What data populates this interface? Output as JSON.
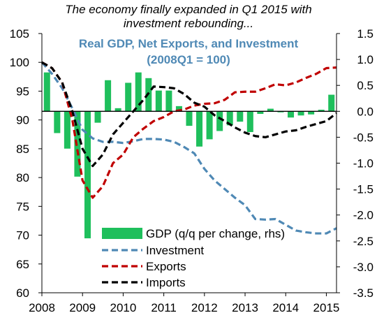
{
  "page": {
    "title_line1": "The economy finally expanded in Q1 2015 with",
    "title_line2": "investment rebounding..."
  },
  "chart_data": {
    "type": "line",
    "title": "Real  GDP, Net Exports, and Investment",
    "subtitle": "(2008Q1 = 100)",
    "title_color": "#4f89b5",
    "xlabel": "",
    "ylabel": "",
    "x_ticks": [
      "2008",
      "2009",
      "2010",
      "2011",
      "2012",
      "2013",
      "2014",
      "2015"
    ],
    "x_range": [
      2008.0,
      2015.25
    ],
    "y_left": {
      "ticks": [
        "60",
        "65",
        "70",
        "75",
        "80",
        "85",
        "90",
        "95",
        "100",
        "105"
      ],
      "range": [
        60,
        105
      ]
    },
    "y_right": {
      "ticks": [
        "-3.5",
        "-3.0",
        "-2.5",
        "-2.0",
        "-1.5",
        "-1.0",
        "-0.5",
        "0.0",
        "0.5",
        "1.0",
        "1.5"
      ],
      "range": [
        -3.5,
        1.5
      ]
    },
    "grid": false,
    "legend_position": "bottom-center",
    "bars": {
      "name": "GDP (q/q per change, rhs)",
      "axis": "right",
      "color": "#1fbf5c",
      "quarters": [
        "2008Q1",
        "2008Q2",
        "2008Q3",
        "2008Q4",
        "2009Q1",
        "2009Q2",
        "2009Q3",
        "2009Q4",
        "2010Q1",
        "2010Q2",
        "2010Q3",
        "2010Q4",
        "2011Q1",
        "2011Q2",
        "2011Q3",
        "2011Q4",
        "2012Q1",
        "2012Q2",
        "2012Q3",
        "2012Q4",
        "2013Q1",
        "2013Q2",
        "2013Q3",
        "2013Q4",
        "2014Q1",
        "2014Q2",
        "2014Q3",
        "2014Q4",
        "2015Q1"
      ],
      "values": [
        0.75,
        -0.42,
        -0.72,
        -1.26,
        -2.45,
        -0.22,
        0.6,
        0.06,
        0.55,
        0.75,
        0.64,
        0.4,
        0.4,
        0.1,
        -0.28,
        -0.68,
        -0.54,
        -0.38,
        -0.27,
        -0.2,
        -0.4,
        -0.05,
        0.05,
        -0.02,
        -0.12,
        -0.08,
        -0.06,
        0.03,
        0.32
      ]
    },
    "series": [
      {
        "name": "Investment",
        "axis": "left",
        "color": "#4f89b5",
        "style": "dashed",
        "x": [
          2008.0,
          2008.25,
          2008.5,
          2008.75,
          2009.0,
          2009.25,
          2009.5,
          2009.75,
          2010.0,
          2010.25,
          2010.5,
          2010.75,
          2011.0,
          2011.25,
          2011.5,
          2011.75,
          2012.0,
          2012.25,
          2012.5,
          2012.75,
          2013.0,
          2013.25,
          2013.5,
          2013.75,
          2014.0,
          2014.25,
          2014.5,
          2014.75,
          2015.0,
          2015.25
        ],
        "values": [
          100,
          98,
          95.5,
          92,
          88.3,
          86.8,
          86.2,
          86.2,
          86.0,
          86.3,
          86.7,
          86.7,
          86.6,
          86.2,
          85.3,
          84.2,
          81.5,
          79.5,
          78,
          76.5,
          75.2,
          72.8,
          72.7,
          72.8,
          71.8,
          70.8,
          70.5,
          70.3,
          70.3,
          71.2
        ]
      },
      {
        "name": "Exports",
        "axis": "left",
        "color": "#c00000",
        "style": "dashed",
        "x": [
          2008.0,
          2008.25,
          2008.5,
          2008.75,
          2009.0,
          2009.25,
          2009.5,
          2009.75,
          2010.0,
          2010.25,
          2010.5,
          2010.75,
          2011.0,
          2011.25,
          2011.5,
          2011.75,
          2012.0,
          2012.25,
          2012.5,
          2012.75,
          2013.0,
          2013.25,
          2013.5,
          2013.75,
          2014.0,
          2014.25,
          2014.5,
          2014.75,
          2015.0,
          2015.25
        ],
        "values": [
          100,
          99,
          96.5,
          90,
          79.5,
          76.5,
          78.5,
          82.5,
          84,
          87,
          88.5,
          89.8,
          90.5,
          91.5,
          91.8,
          92.5,
          92.8,
          92.9,
          93.5,
          94.8,
          94.9,
          94.9,
          95.5,
          96.2,
          96.0,
          96.5,
          97.3,
          98.0,
          99.0,
          99.1
        ]
      },
      {
        "name": "Imports",
        "axis": "left",
        "color": "#000000",
        "style": "dashed",
        "x": [
          2008.0,
          2008.25,
          2008.5,
          2008.75,
          2009.0,
          2009.25,
          2009.5,
          2009.75,
          2010.0,
          2010.25,
          2010.5,
          2010.75,
          2011.0,
          2011.25,
          2011.5,
          2011.75,
          2012.0,
          2012.25,
          2012.5,
          2012.75,
          2013.0,
          2013.25,
          2013.5,
          2013.75,
          2014.0,
          2014.25,
          2014.5,
          2014.75,
          2015.0,
          2015.25
        ],
        "values": [
          100,
          99,
          96.5,
          91.5,
          85,
          82,
          84,
          87.5,
          89.5,
          91.5,
          93.5,
          95.8,
          95.7,
          95.5,
          94.5,
          93,
          92.3,
          90.8,
          89.8,
          88.7,
          87.8,
          87.2,
          87.0,
          87.5,
          88,
          88.2,
          88.8,
          89.3,
          89.8,
          91.2
        ]
      }
    ]
  }
}
